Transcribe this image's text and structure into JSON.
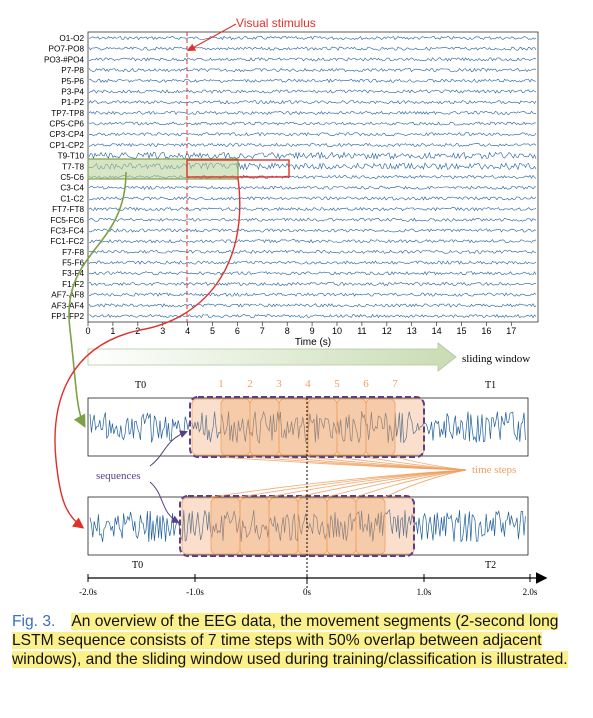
{
  "eeg_panel": {
    "stimulus_label": "Visual stimulus",
    "channels": [
      "O1-O2",
      "PO7-PO8",
      "PO3-#PO4",
      "P7-P8",
      "P5-P6",
      "P3-P4",
      "P1-P2",
      "TP7-TP8",
      "CP5-CP6",
      "CP3-CP4",
      "CP1-CP2",
      "T9-T10",
      "T7-T8",
      "C5-C6",
      "C3-C4",
      "C1-C2",
      "FT7-FT8",
      "FC5-FC6",
      "FC3-FC4",
      "FC1-FC2",
      "F7-F8",
      "F5-F6",
      "F3-F4",
      "F1-F2",
      "AF7-AF8",
      "AF3-AF4",
      "FP1-FP2"
    ],
    "x_ticks": [
      "0",
      "1",
      "2",
      "3",
      "4",
      "5",
      "6",
      "7",
      "8",
      "9",
      "10",
      "11",
      "12",
      "13",
      "14",
      "15",
      "16",
      "17"
    ],
    "x_label": "Time (s)",
    "stimulus_time": 4,
    "highlight_window_s": [
      4,
      8
    ],
    "sliding_window_s": [
      0,
      6
    ]
  },
  "sliding_window_label": "sliding window",
  "sequence_panel": {
    "top_left_label": "T0",
    "top_right_label": "T1",
    "step_numbers": [
      "1",
      "2",
      "3",
      "4",
      "5",
      "6",
      "7"
    ],
    "sequences_label": "sequences",
    "time_steps_label": "time steps",
    "bottom_left_label": "T0",
    "bottom_right_label": "T2",
    "timeline_ticks": [
      "-2.0s",
      "-1.0s",
      "0s",
      "1.0s",
      "2.0s"
    ]
  },
  "colors": {
    "signal": "#1f5f9c",
    "stimulus": "#e0302a",
    "window": "#7fa04a",
    "orange": "#f0a060",
    "purple": "#5a3f86"
  },
  "caption": {
    "label": "Fig. 3.",
    "text": "An overview of the EEG data, the movement segments (2-second long LSTM sequence consists of 7 time steps with 50% overlap between adjacent windows), and the sliding window used during training/classification is illustrated."
  }
}
